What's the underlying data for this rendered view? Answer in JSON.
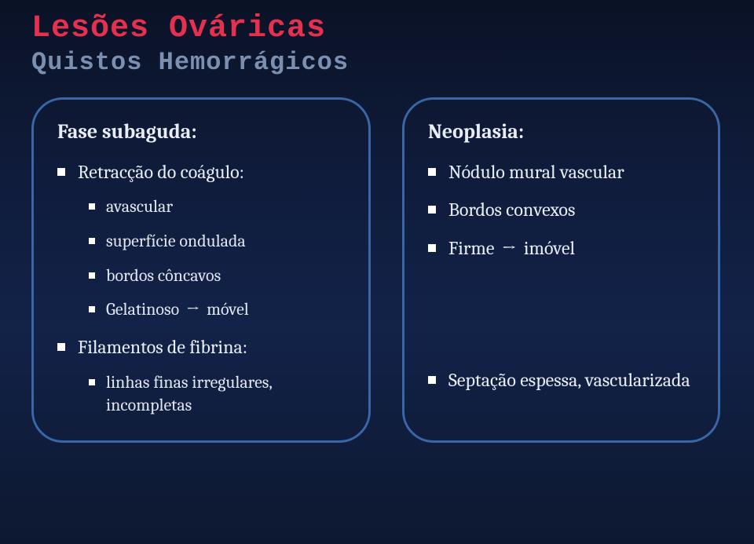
{
  "header": {
    "title": "Lesões Ováricas",
    "subtitle": "Quistos Hemorrágicos"
  },
  "left": {
    "title": "Fase subaguda:",
    "items": [
      {
        "label": "Retracção do coágulo:",
        "sub": [
          {
            "label": "avascular"
          },
          {
            "label": "superfície ondulada"
          },
          {
            "label": "bordos côncavos"
          },
          {
            "label": "Gelatinoso",
            "arrow": "→",
            "label2": "móvel"
          }
        ]
      },
      {
        "label": "Filamentos de fibrina:",
        "sub": [
          {
            "label": "linhas finas irregulares, incompletas"
          }
        ]
      }
    ]
  },
  "right": {
    "title": "Neoplasia:",
    "items": [
      {
        "label": "Nódulo mural vascular"
      },
      {
        "label": "Bordos convexos"
      },
      {
        "label": "Firme",
        "arrow": "→",
        "label2": "imóvel"
      },
      {
        "label": "Septação espessa, vascularizada",
        "spaced": true
      }
    ]
  },
  "colors": {
    "title": "#e63050",
    "subtitle": "#7b8fb0",
    "box_border": "#3a66a5",
    "text": "#e8edf5",
    "bg_top": "#0a1225",
    "bg_bottom": "#0d1830"
  }
}
